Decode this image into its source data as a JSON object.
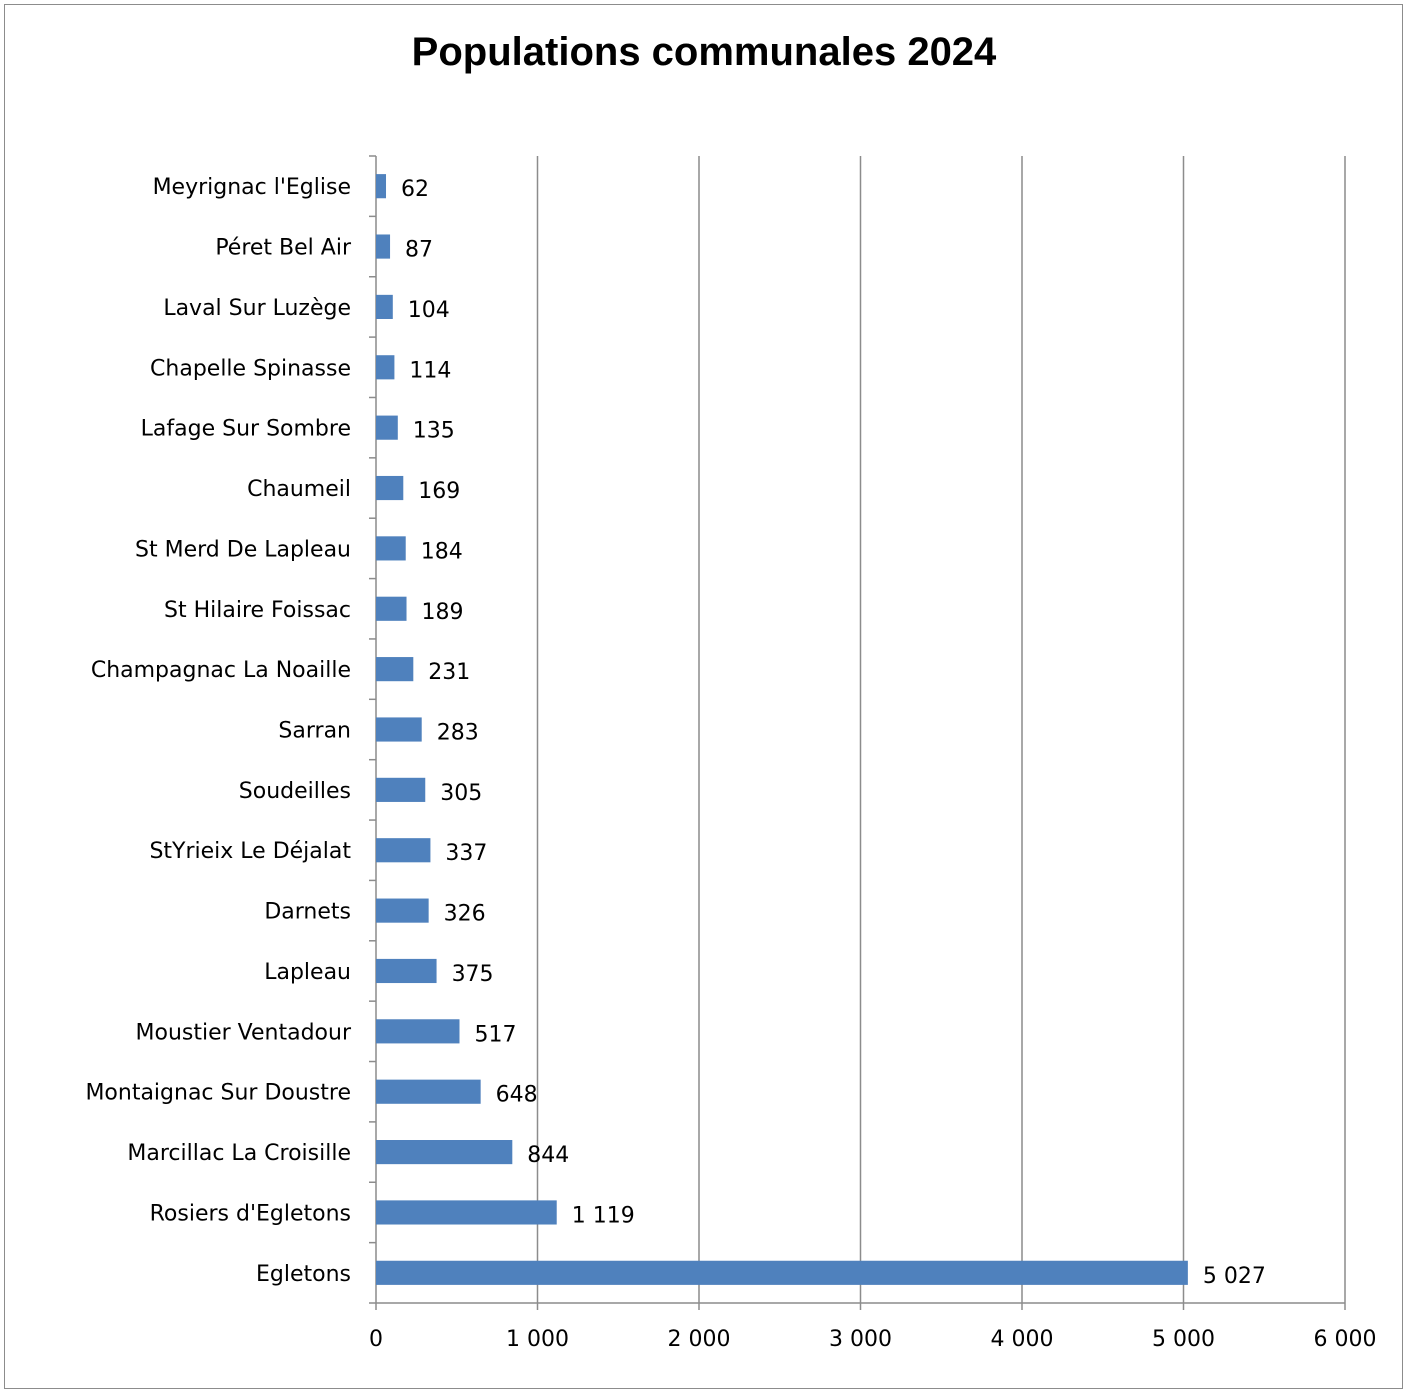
{
  "chart_data": {
    "type": "bar",
    "orientation": "horizontal",
    "title": "Populations communales 2024",
    "xlabel": "",
    "ylabel": "",
    "xlim": [
      0,
      6000
    ],
    "x_ticks": [
      0,
      1000,
      2000,
      3000,
      4000,
      5000,
      6000
    ],
    "x_tick_labels": [
      "0",
      "1 000",
      "2 000",
      "3 000",
      "4 000",
      "5 000",
      "6 000"
    ],
    "grid": "vertical major gridlines",
    "legend": "none",
    "bar_color": "#4f81bd",
    "categories": [
      "Egletons",
      "Rosiers d'Egletons",
      "Marcillac La Croisille",
      "Montaignac Sur Doustre",
      "Moustier Ventadour",
      "Lapleau",
      "Darnets",
      "StYrieix Le Déjalat",
      "Soudeilles",
      "Sarran",
      "Champagnac La Noaille",
      "St Hilaire Foissac",
      "St Merd De Lapleau",
      "Chaumeil",
      "Lafage Sur Sombre",
      "Chapelle Spinasse",
      "Laval Sur Luzège",
      "Péret Bel Air",
      "Meyrignac l'Eglise"
    ],
    "values": [
      5027,
      1119,
      844,
      648,
      517,
      375,
      326,
      337,
      305,
      283,
      231,
      189,
      184,
      169,
      135,
      114,
      104,
      87,
      62
    ],
    "data_labels": [
      "5 027",
      "1 119",
      "844",
      "648",
      "517",
      "375",
      "326",
      "337",
      "305",
      "283",
      "231",
      "189",
      "184",
      "169",
      "135",
      "114",
      "104",
      "87",
      "62"
    ]
  }
}
